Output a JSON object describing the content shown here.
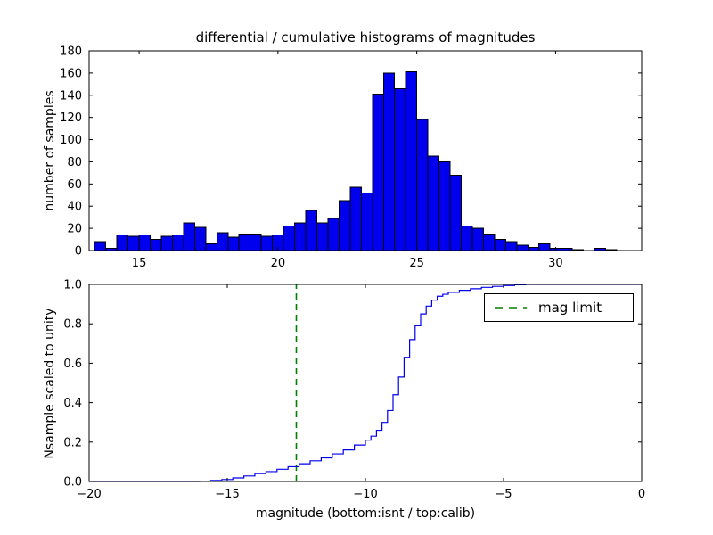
{
  "figure": {
    "background": "#ffffff",
    "accent_blue": "#0000ee",
    "accent_green": "#008000"
  },
  "chart_data": [
    {
      "type": "bar",
      "title": "differential / cumulative histograms of magnitudes",
      "ylabel": "number of samples",
      "xlabel": "",
      "xlim": [
        13.2,
        33.1
      ],
      "ylim": [
        0,
        180
      ],
      "xtick_vals": [
        15,
        20,
        25,
        30
      ],
      "xtick_labels": [
        "15",
        "20",
        "25",
        "30"
      ],
      "ytick_vals": [
        0,
        20,
        40,
        60,
        80,
        100,
        120,
        140,
        160,
        180
      ],
      "ytick_labels": [
        "0",
        "20",
        "40",
        "60",
        "80",
        "100",
        "120",
        "140",
        "160",
        "180"
      ],
      "grid": false,
      "color": "#0000ee",
      "edge_color": "#000000",
      "bins_start": 13.4,
      "bin_width": 0.4,
      "values": [
        8,
        2,
        14,
        13,
        14,
        10,
        13,
        14,
        25,
        21,
        6,
        16,
        12,
        15,
        15,
        13,
        14,
        22,
        25,
        36,
        25,
        29,
        45,
        57,
        52,
        141,
        160,
        146,
        161,
        118,
        85,
        80,
        68,
        22,
        20,
        15,
        10,
        8,
        5,
        3,
        6,
        2,
        2,
        1,
        0,
        2,
        1
      ]
    },
    {
      "type": "line",
      "style": "step",
      "title": "",
      "ylabel": "Nsample scaled to unity",
      "xlabel": "magnitude (bottom:isnt / top:calib)",
      "xlim": [
        -20,
        0
      ],
      "ylim": [
        0,
        1
      ],
      "xtick_vals": [
        -20,
        -15,
        -10,
        -5,
        0
      ],
      "xtick_labels": [
        "−20",
        "−15",
        "−10",
        "−5",
        "0"
      ],
      "ytick_vals": [
        0,
        0.2,
        0.4,
        0.6,
        0.8,
        1.0
      ],
      "ytick_labels": [
        "0.0",
        "0.2",
        "0.4",
        "0.6",
        "0.8",
        "1.0"
      ],
      "grid": false,
      "color": "#0000ee",
      "points": [
        [
          -20,
          0
        ],
        [
          -16,
          0.002
        ],
        [
          -15.6,
          0.005
        ],
        [
          -15.2,
          0.01
        ],
        [
          -14.8,
          0.018
        ],
        [
          -14.4,
          0.028
        ],
        [
          -14,
          0.04
        ],
        [
          -13.6,
          0.05
        ],
        [
          -13.2,
          0.062
        ],
        [
          -12.8,
          0.075
        ],
        [
          -12.4,
          0.09
        ],
        [
          -12,
          0.105
        ],
        [
          -11.6,
          0.12
        ],
        [
          -11.2,
          0.14
        ],
        [
          -10.8,
          0.16
        ],
        [
          -10.4,
          0.185
        ],
        [
          -10,
          0.21
        ],
        [
          -9.8,
          0.23
        ],
        [
          -9.6,
          0.26
        ],
        [
          -9.4,
          0.3
        ],
        [
          -9.2,
          0.36
        ],
        [
          -9,
          0.44
        ],
        [
          -8.8,
          0.53
        ],
        [
          -8.6,
          0.63
        ],
        [
          -8.4,
          0.72
        ],
        [
          -8.2,
          0.79
        ],
        [
          -8,
          0.85
        ],
        [
          -7.8,
          0.89
        ],
        [
          -7.6,
          0.92
        ],
        [
          -7.4,
          0.94
        ],
        [
          -7.2,
          0.95
        ],
        [
          -7,
          0.96
        ],
        [
          -6.6,
          0.97
        ],
        [
          -6.2,
          0.978
        ],
        [
          -5.8,
          0.985
        ],
        [
          -5.4,
          0.99
        ],
        [
          -5,
          0.994
        ],
        [
          -4.6,
          0.998
        ],
        [
          -4.2,
          1
        ],
        [
          0,
          1
        ]
      ],
      "vline": {
        "x": -12.5,
        "color": "#008000",
        "style": "dashed"
      },
      "legend": {
        "label": "mag limit",
        "position": "upper right",
        "line_color": "#008000",
        "line_style": "dashed"
      }
    }
  ]
}
